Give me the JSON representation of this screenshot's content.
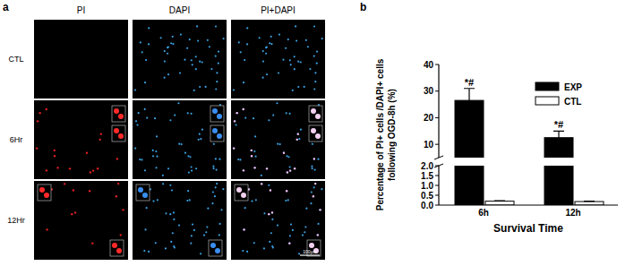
{
  "panel_a": {
    "label": "a",
    "columns": [
      "PI",
      "DAPI",
      "PI+DAPI"
    ],
    "rows": [
      "CTL",
      "6Hr",
      "12Hr"
    ],
    "scale_bar": "100μm"
  },
  "chart_data": {
    "type": "bar",
    "panel_label": "b",
    "x_label": "Survival Time",
    "y_label": [
      "Percentage of PI+ cells /DAPI+ cells",
      "following OGD-8h (%)"
    ],
    "categories": [
      "6h",
      "12h"
    ],
    "series": [
      {
        "name": "EXP",
        "color": "#000000",
        "values": [
          26.5,
          12.5
        ],
        "errors": [
          4.5,
          2.5
        ],
        "annotations": [
          "*#",
          "*#"
        ]
      },
      {
        "name": "CTL",
        "color": "#ffffff",
        "values": [
          0.2,
          0.18
        ],
        "errors": [
          0.02,
          0.02
        ]
      }
    ],
    "ylim": [
      0,
      40
    ],
    "y_break": [
      2,
      5
    ],
    "yticks": [
      {
        "value": 0,
        "label": "0.0"
      },
      {
        "value": 0.5,
        "label": "0.5"
      },
      {
        "value": 1,
        "label": "1.0"
      },
      {
        "value": 1.5,
        "label": "1.5"
      },
      {
        "value": 2,
        "label": "2.0"
      },
      10,
      20,
      30,
      40
    ],
    "legend": "top-right",
    "grid": false
  }
}
